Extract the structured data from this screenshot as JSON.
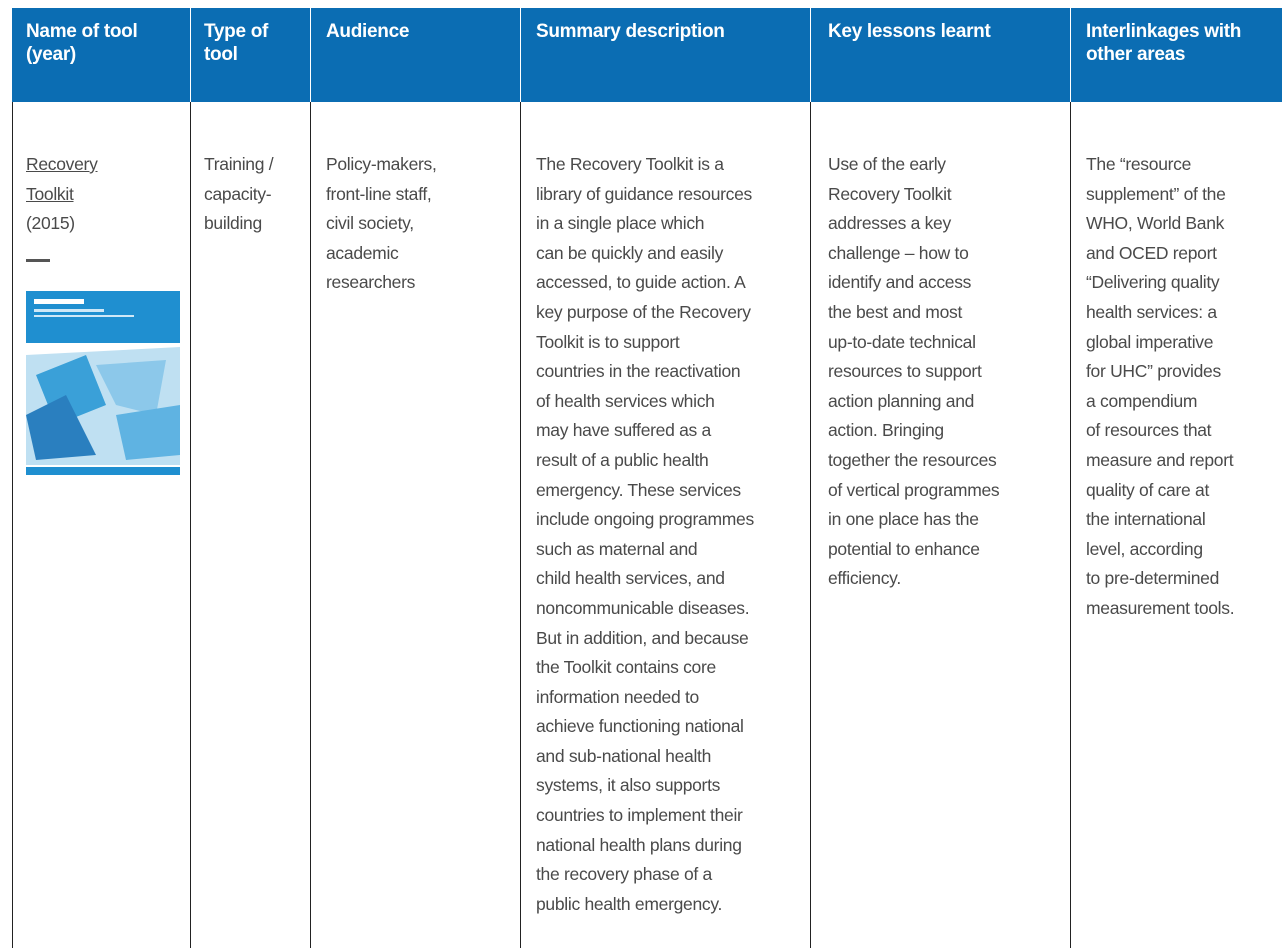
{
  "table": {
    "header": [
      [
        "Name of tool",
        "(year)"
      ],
      [
        "Type of",
        "tool"
      ],
      [
        "Audience"
      ],
      [
        "Summary description"
      ],
      [
        "Key lessons learnt"
      ],
      [
        "Interlinkages with",
        "other areas"
      ]
    ],
    "rows": [
      [
        {
          "link": [
            "Recovery",
            "Toolkit"
          ],
          "year": "(2015)"
        },
        [
          "Training /",
          "capacity-",
          "building"
        ],
        [
          "Policy-makers,",
          "front-line staff,",
          "civil society,",
          "academic",
          "researchers"
        ],
        [
          "The Recovery Toolkit is a",
          "library of guidance resources",
          "in a single place which",
          "can be quickly and easily",
          "accessed, to guide action. A",
          "key purpose of the Recovery",
          "Toolkit is to support",
          "countries in the reactivation",
          "of health services which",
          "may have suffered as a",
          "result of a public health",
          "emergency. These services",
          "include ongoing programmes",
          "such as maternal and",
          "child health services, and",
          "noncommunicable diseases.",
          "But in addition, and because",
          "the Toolkit contains core",
          "information needed to",
          "achieve functioning national",
          "and sub-national health",
          "systems, it also supports",
          "countries to implement their",
          "national health plans during",
          "the recovery phase of a",
          "public health emergency."
        ],
        [
          "Use of the early",
          "Recovery Toolkit",
          "addresses a key",
          "challenge – how to",
          "identify and access",
          "the best and most",
          "up-to-date technical",
          "resources to support",
          "action planning and",
          "action. Bringing",
          "together the resources",
          "of vertical programmes",
          "in one place has the",
          "potential to enhance",
          "efficiency."
        ],
        [
          "The “resource",
          "supplement” of the",
          "WHO, World Bank",
          "and OCED report",
          "“Delivering quality",
          "health services: a",
          "global imperative",
          "for UHC” provides",
          "a compendium",
          "of resources that",
          "measure and report",
          "quality of care at",
          "the international",
          "level, according",
          "to pre-determined",
          "measurement tools."
        ]
      ]
    ]
  }
}
